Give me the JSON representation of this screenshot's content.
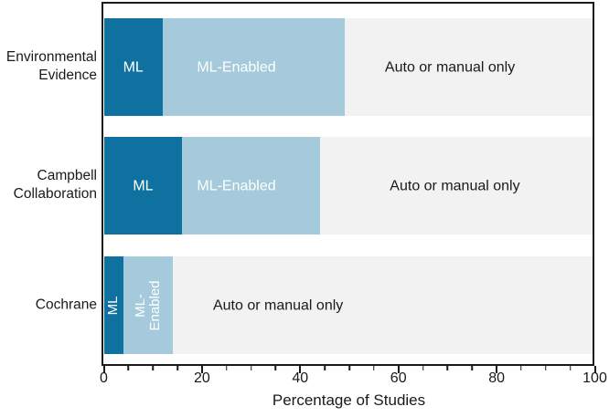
{
  "colors": {
    "ml_fill": "#0f719f",
    "ml_text": "#ffffff",
    "ml_enabled_fill": "#a5cadb",
    "ml_enabled_text": "#ffffff",
    "auto_fill": "#f2f2f2",
    "auto_text": "#1a1a1a",
    "axis": "#1a1a1a"
  },
  "chart_data": {
    "type": "bar",
    "subtype": "horizontal-stacked",
    "title": "",
    "xlabel": "Percentage of Studies",
    "ylabel": "",
    "xlim": [
      0,
      100
    ],
    "x_major_ticks": [
      0,
      20,
      40,
      60,
      80,
      100
    ],
    "x_minor_step": 5,
    "grid": false,
    "legend": "labels-inside-bars",
    "series_names": [
      "ML",
      "ML-Enabled",
      "Auto or manual only"
    ],
    "rows": [
      {
        "category": "Environmental Evidence",
        "segments": [
          {
            "series": "ML",
            "start": 0,
            "end": 12,
            "label": "ML",
            "label_x": 6,
            "rotated": false
          },
          {
            "series": "ML-Enabled",
            "start": 12,
            "end": 49,
            "label": "ML-Enabled",
            "label_x": 27,
            "rotated": false
          },
          {
            "series": "Auto or manual only",
            "start": 49,
            "end": 100,
            "label": "Auto or manual only",
            "label_x": 70.5,
            "rotated": false
          }
        ]
      },
      {
        "category": "Campbell Collaboration",
        "segments": [
          {
            "series": "ML",
            "start": 0,
            "end": 16,
            "label": "ML",
            "label_x": 8,
            "rotated": false
          },
          {
            "series": "ML-Enabled",
            "start": 16,
            "end": 44,
            "label": "ML-Enabled",
            "label_x": 27,
            "rotated": false
          },
          {
            "series": "Auto or manual only",
            "start": 44,
            "end": 100,
            "label": "Auto or manual only",
            "label_x": 71.5,
            "rotated": false
          }
        ]
      },
      {
        "category": "Cochrane",
        "segments": [
          {
            "series": "ML",
            "start": 0,
            "end": 4,
            "label": "ML",
            "label_x": 2,
            "rotated": true
          },
          {
            "series": "ML-Enabled",
            "start": 4,
            "end": 14,
            "label": "ML-\nEnabled",
            "label_x": 9,
            "rotated": true
          },
          {
            "series": "Auto or manual only",
            "start": 14,
            "end": 100,
            "label": "Auto or manual only",
            "label_x": 35.5,
            "rotated": false
          }
        ]
      }
    ]
  }
}
